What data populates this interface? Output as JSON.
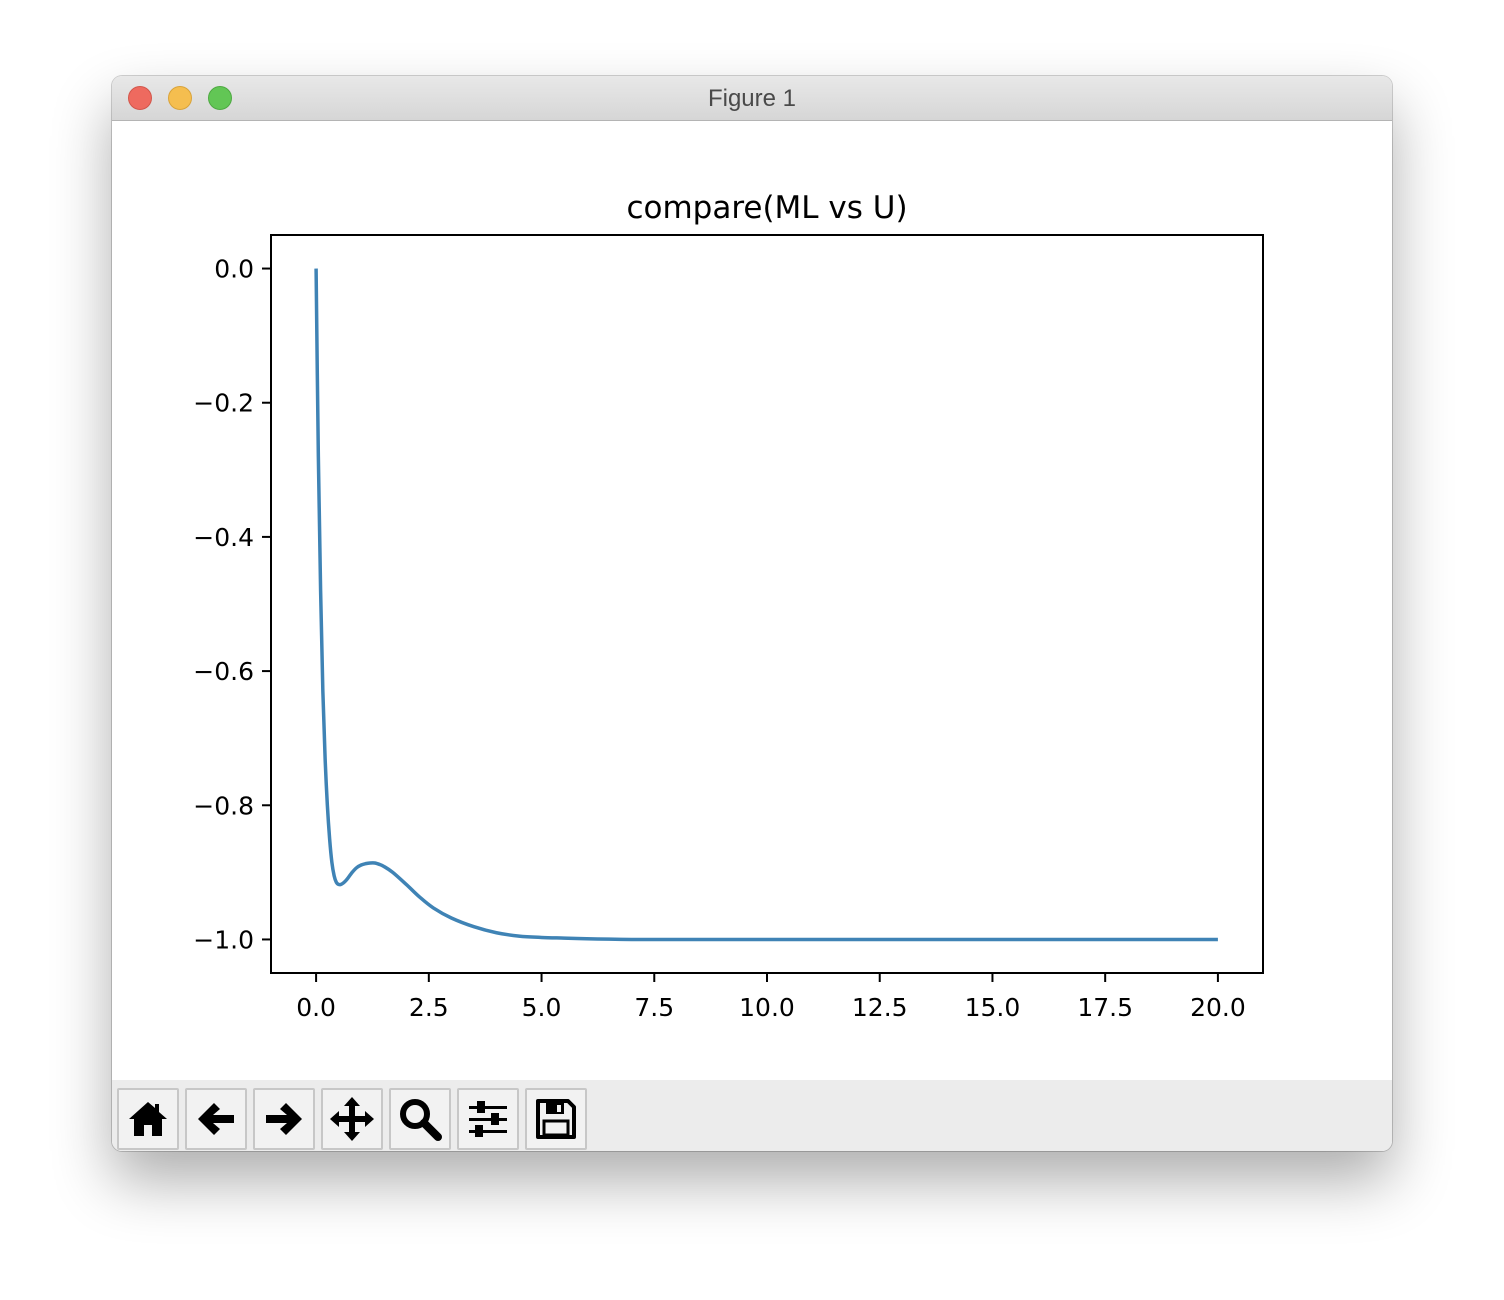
{
  "window": {
    "title": "Figure 1"
  },
  "toolbar": {
    "buttons": [
      {
        "icon": "home-icon"
      },
      {
        "icon": "back-arrow-icon"
      },
      {
        "icon": "forward-arrow-icon"
      },
      {
        "icon": "pan-move-icon"
      },
      {
        "icon": "zoom-magnifier-icon"
      },
      {
        "icon": "subplots-sliders-icon"
      },
      {
        "icon": "save-floppy-icon"
      }
    ]
  },
  "chart_data": {
    "type": "line",
    "title": "compare(ML vs U)",
    "xlabel": "",
    "ylabel": "",
    "xlim": [
      -1.0,
      21.0
    ],
    "ylim": [
      -1.05,
      0.05
    ],
    "xticks": [
      0.0,
      2.5,
      5.0,
      7.5,
      10.0,
      12.5,
      15.0,
      17.5,
      20.0
    ],
    "xtick_labels": [
      "0.0",
      "2.5",
      "5.0",
      "7.5",
      "10.0",
      "12.5",
      "15.0",
      "17.5",
      "20.0"
    ],
    "yticks": [
      0.0,
      -0.2,
      -0.4,
      -0.6,
      -0.8,
      -1.0
    ],
    "ytick_labels": [
      "0.0",
      "−0.2",
      "−0.4",
      "−0.6",
      "−0.8",
      "−1.0"
    ],
    "grid": false,
    "legend": null,
    "color": "#3f83b5",
    "series": [
      {
        "x": [
          0.0,
          0.05,
          0.1,
          0.15,
          0.2,
          0.25,
          0.3,
          0.35,
          0.4,
          0.45,
          0.5,
          0.55,
          0.6,
          0.65,
          0.7,
          0.8,
          0.9,
          1.0,
          1.1,
          1.2,
          1.3,
          1.4,
          1.5,
          1.7,
          2.0,
          2.3,
          2.6,
          3.0,
          3.5,
          4.0,
          4.5,
          5.0,
          5.5,
          6.0,
          6.5,
          7.0,
          7.5,
          8.0,
          9.0,
          10.0,
          12.0,
          14.0,
          16.0,
          18.0,
          20.0
        ],
        "y": [
          0.0,
          -0.28,
          -0.48,
          -0.63,
          -0.73,
          -0.8,
          -0.85,
          -0.885,
          -0.905,
          -0.915,
          -0.918,
          -0.918,
          -0.916,
          -0.913,
          -0.909,
          -0.9,
          -0.893,
          -0.889,
          -0.887,
          -0.886,
          -0.886,
          -0.888,
          -0.891,
          -0.9,
          -0.918,
          -0.937,
          -0.953,
          -0.968,
          -0.981,
          -0.99,
          -0.995,
          -0.997,
          -0.998,
          -0.999,
          -0.9995,
          -1.0,
          -1.0,
          -1.0,
          -1.0,
          -1.0,
          -1.0,
          -1.0,
          -1.0,
          -1.0,
          -1.0
        ]
      }
    ]
  }
}
